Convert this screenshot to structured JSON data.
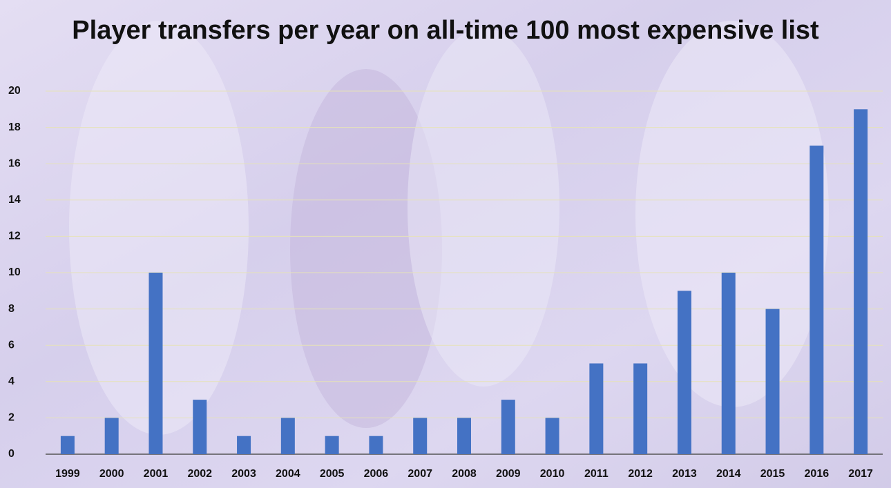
{
  "chart_data": {
    "type": "bar",
    "title": "Player transfers per year on all-time 100 most expensive list",
    "categories": [
      "1999",
      "2000",
      "2001",
      "2002",
      "2003",
      "2004",
      "2005",
      "2006",
      "2007",
      "2008",
      "2009",
      "2010",
      "2011",
      "2012",
      "2013",
      "2014",
      "2015",
      "2016",
      "2017"
    ],
    "values": [
      1,
      2,
      10,
      3,
      1,
      2,
      1,
      1,
      2,
      2,
      3,
      2,
      5,
      5,
      9,
      10,
      8,
      17,
      19
    ],
    "color": "#4472c4",
    "ylim": [
      0,
      20
    ],
    "yticks": [
      0,
      2,
      4,
      6,
      8,
      10,
      12,
      14,
      16,
      18,
      20
    ],
    "grid": true
  }
}
